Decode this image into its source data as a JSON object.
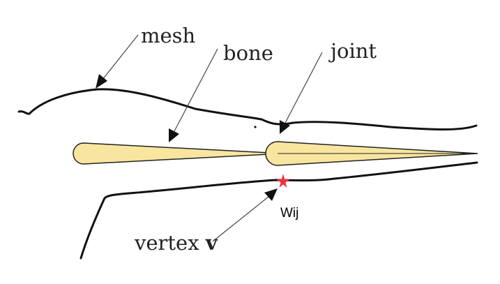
{
  "labels": {
    "mesh": "mesh",
    "bone": "bone",
    "joint": "joint",
    "vertex": "vertex ",
    "vertex_symbol": "v",
    "weight": "Wij"
  },
  "colors": {
    "bone_fill": "#f8e6a0",
    "outline": "#111111",
    "vertex_marker": "#e8323c"
  }
}
